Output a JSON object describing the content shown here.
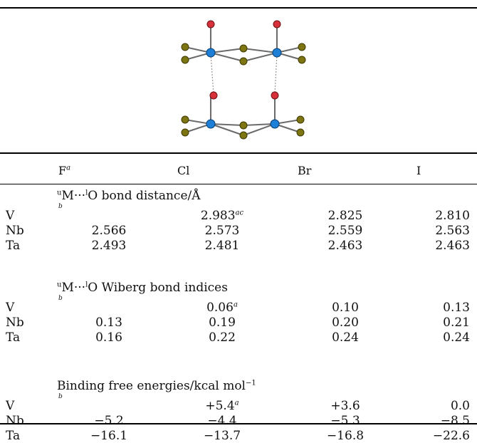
{
  "header": {
    "col0": "",
    "col1": "F",
    "col1_sup": "a",
    "col2": "Cl",
    "col3": "Br",
    "col4": "I"
  },
  "sections": [
    {
      "title_pre": "M",
      "title_mid": "···",
      "title_post": "O bond distance/Å",
      "sup_u": "u",
      "sup_l": "l",
      "note": "b",
      "rows": [
        {
          "label": "V",
          "F": "",
          "Cl": "2.983",
          "Cl_sup": "ac",
          "Br": "2.825",
          "I": "2.810"
        },
        {
          "label": "Nb",
          "F": "2.566",
          "Cl": "2.573",
          "Cl_sup": "",
          "Br": "2.559",
          "I": "2.563"
        },
        {
          "label": "Ta",
          "F": "2.493",
          "Cl": "2.481",
          "Cl_sup": "",
          "Br": "2.463",
          "I": "2.463"
        }
      ]
    },
    {
      "title_pre": "M",
      "title_mid": "···",
      "title_post": "O Wiberg bond indices",
      "sup_u": "u",
      "sup_l": "l",
      "note": "b",
      "rows": [
        {
          "label": "V",
          "F": "",
          "Cl": "0.06",
          "Cl_sup": "a",
          "Br": "0.10",
          "I": "0.13"
        },
        {
          "label": "Nb",
          "F": "0.13",
          "Cl": "0.19",
          "Cl_sup": "",
          "Br": "0.20",
          "I": "0.21"
        },
        {
          "label": "Ta",
          "F": "0.16",
          "Cl": "0.22",
          "Cl_sup": "",
          "Br": "0.24",
          "I": "0.24"
        }
      ]
    },
    {
      "title_pre": "Binding free energies/kcal mol",
      "title_mid": "",
      "title_post": "",
      "sup_u": "",
      "sup_l": "−1",
      "note": "b",
      "rows": [
        {
          "label": "V",
          "F": "",
          "Cl": "+5.4",
          "Cl_sup": "a",
          "Br": "+3.6",
          "I": "0.0"
        },
        {
          "label": "Nb",
          "F": "−5.2",
          "Cl": "−4.4",
          "Cl_sup": "",
          "Br": "−5.3",
          "I": "−8.5"
        },
        {
          "label": "Ta",
          "F": "−16.1",
          "Cl": "−13.7",
          "Cl_sup": "",
          "Br": "−16.8",
          "I": "−22.6"
        }
      ]
    }
  ],
  "colors": {
    "oxygen": "#d6313a",
    "metal": "#1e7fd6",
    "halogen": "#7d7512",
    "bond": "#666666"
  }
}
